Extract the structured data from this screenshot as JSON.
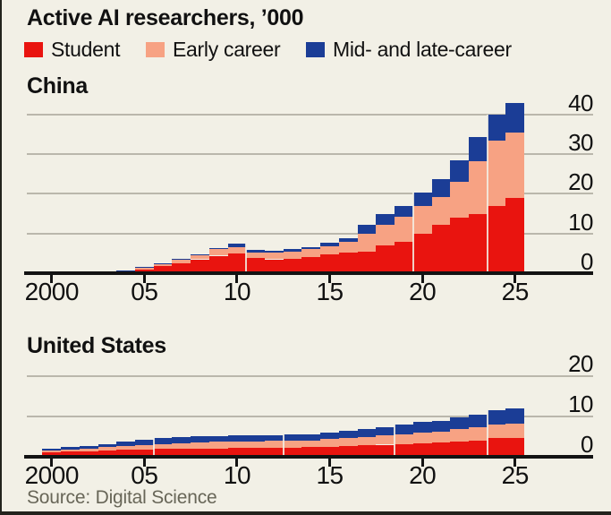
{
  "header": {
    "title": "Active AI researchers, ’000",
    "legend": [
      {
        "label": "Student",
        "color_key": "student"
      },
      {
        "label": "Early career",
        "color_key": "early_career"
      },
      {
        "label": "Mid- and late-career",
        "color_key": "mid_late_career"
      }
    ]
  },
  "colors": {
    "student": "#e9140f",
    "early_career": "#f7a283",
    "mid_late_career": "#1b3d96",
    "background": "#f2f0e6",
    "gridline": "#bab7ac",
    "axis": "#131313",
    "text": "#111111",
    "source_text": "#686658",
    "bar_separator": "rgba(242,240,229,0.85)"
  },
  "chart_data": [
    {
      "type": "bar",
      "stacked": true,
      "title": "China",
      "x": [
        2000,
        2001,
        2002,
        2003,
        2004,
        2005,
        2006,
        2007,
        2008,
        2009,
        2010,
        2011,
        2012,
        2013,
        2014,
        2015,
        2016,
        2017,
        2018,
        2019,
        2020,
        2021,
        2022,
        2023,
        2024,
        2025
      ],
      "series": [
        {
          "name": "Student",
          "color_key": "student",
          "values": [
            0.06,
            0.1,
            0.18,
            0.28,
            0.45,
            1.0,
            1.7,
            2.5,
            3.5,
            4.4,
            4.9,
            3.9,
            3.5,
            3.7,
            4.1,
            4.7,
            5.3,
            5.5,
            6.9,
            8.0,
            9.9,
            12.2,
            14.0,
            15.0,
            17.0,
            19.0
          ]
        },
        {
          "name": "Early career",
          "color_key": "early_career",
          "values": [
            0.04,
            0.06,
            0.09,
            0.14,
            0.25,
            0.45,
            0.6,
            0.8,
            1.05,
            1.6,
            1.7,
            1.3,
            1.6,
            1.8,
            1.9,
            2.1,
            2.7,
            4.4,
            5.3,
            6.2,
            7.0,
            7.0,
            9.0,
            13.2,
            16.5,
            16.5
          ]
        },
        {
          "name": "Mid- and late-career",
          "color_key": "mid_late_career",
          "values": [
            0.02,
            0.03,
            0.04,
            0.05,
            0.08,
            0.15,
            0.2,
            0.2,
            0.25,
            0.4,
            0.8,
            0.7,
            0.6,
            0.6,
            0.6,
            0.8,
            0.8,
            2.3,
            2.7,
            2.8,
            3.4,
            4.6,
            5.4,
            6.0,
            6.5,
            7.5
          ]
        }
      ],
      "ylim": [
        0,
        40
      ],
      "yticks": [
        0,
        10,
        20,
        30,
        40
      ],
      "xticks": [
        2000,
        2005,
        2010,
        2015,
        2020,
        2025
      ],
      "xtick_labels": [
        "2000",
        "05",
        "10",
        "15",
        "20",
        "25"
      ],
      "grid": "horizontal",
      "legend_position": "top",
      "separators_before_year": [
        2011,
        2020,
        2024
      ]
    },
    {
      "type": "bar",
      "stacked": true,
      "title": "United States",
      "x": [
        2000,
        2001,
        2002,
        2003,
        2004,
        2005,
        2006,
        2007,
        2008,
        2009,
        2010,
        2011,
        2012,
        2013,
        2014,
        2015,
        2016,
        2017,
        2018,
        2019,
        2020,
        2021,
        2022,
        2023,
        2024,
        2025
      ],
      "series": [
        {
          "name": "Student",
          "color_key": "student",
          "values": [
            1.15,
            1.25,
            1.4,
            1.55,
            1.7,
            1.8,
            2.0,
            2.0,
            2.1,
            2.1,
            2.2,
            2.2,
            2.2,
            2.3,
            2.35,
            2.5,
            2.6,
            2.8,
            3.0,
            3.2,
            3.4,
            3.5,
            3.7,
            4.0,
            4.6,
            4.7
          ]
        },
        {
          "name": "Early career",
          "color_key": "early_career",
          "values": [
            0.45,
            0.55,
            0.65,
            0.8,
            0.9,
            1.0,
            1.2,
            1.4,
            1.5,
            1.6,
            1.6,
            1.6,
            1.7,
            1.7,
            1.75,
            1.85,
            2.0,
            2.15,
            2.3,
            2.4,
            2.55,
            2.8,
            3.1,
            3.3,
            3.4,
            3.6
          ]
        },
        {
          "name": "Mid- and late-career",
          "color_key": "mid_late_career",
          "values": [
            0.4,
            0.55,
            0.7,
            0.85,
            1.1,
            1.4,
            1.5,
            1.5,
            1.55,
            1.5,
            1.5,
            1.5,
            1.4,
            1.45,
            1.5,
            1.65,
            1.75,
            1.85,
            2.0,
            2.3,
            2.65,
            2.7,
            3.0,
            3.2,
            3.5,
            3.7
          ]
        }
      ],
      "ylim": [
        0,
        20
      ],
      "yticks": [
        0,
        10,
        20
      ],
      "xticks": [
        2000,
        2005,
        2010,
        2015,
        2020,
        2025
      ],
      "xtick_labels": [
        "2000",
        "05",
        "10",
        "15",
        "20",
        "25"
      ],
      "grid": "horizontal",
      "legend_position": "top",
      "separators_before_year": [
        2006,
        2013,
        2019,
        2024
      ]
    }
  ],
  "footer": {
    "source": "Source: Digital Science"
  }
}
